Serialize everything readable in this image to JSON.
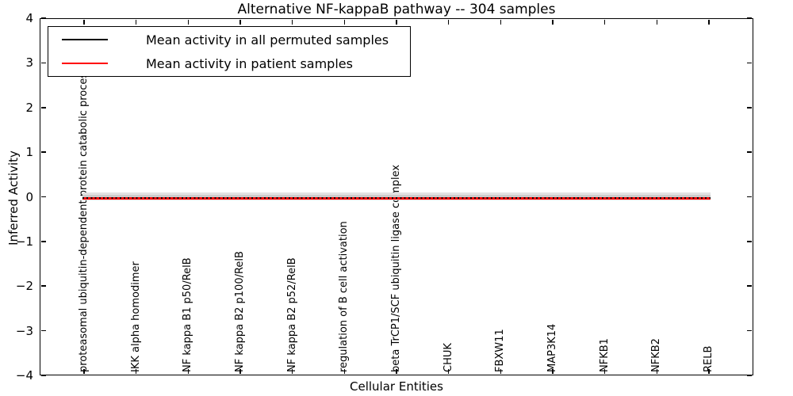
{
  "chart_data": {
    "type": "line",
    "title": "Alternative NF-kappaB pathway -- 304 samples",
    "xlabel": "Cellular Entities",
    "ylabel": "Inferred Activity",
    "ylim": [
      -4,
      4
    ],
    "yticks": [
      4,
      3,
      2,
      1,
      0,
      -1,
      -2,
      -3,
      -4
    ],
    "grid": false,
    "legend_position": "upper left",
    "categories": [
      "proteasomal ubiquitin-dependent protein catabolic process",
      "IKK alpha homodimer",
      "NF kappa B1 p50/RelB",
      "NF kappa B2 p100/RelB",
      "NF kappa B2 p52/RelB",
      "regulation of B cell activation",
      "beta TrCP1/SCF ubiquitin ligase complex",
      "CHUK",
      "FBXW11",
      "MAP3K14",
      "NFKB1",
      "NFKB2",
      "RELB"
    ],
    "series": [
      {
        "name": "Mean activity in all permuted samples",
        "color": "#000000",
        "style": "dotted",
        "values": [
          -0.02,
          -0.02,
          -0.02,
          -0.03,
          -0.02,
          -0.02,
          -0.02,
          -0.02,
          -0.02,
          -0.02,
          -0.02,
          -0.02,
          -0.02
        ]
      },
      {
        "name": "Mean activity in patient samples",
        "color": "#ff0000",
        "style": "solid",
        "values": [
          -0.04,
          -0.03,
          -0.03,
          -0.05,
          -0.03,
          -0.03,
          -0.03,
          -0.03,
          -0.03,
          -0.03,
          -0.03,
          -0.03,
          -0.04
        ]
      }
    ],
    "band": {
      "upper": 0.1,
      "lower": -0.08,
      "inner_upper": 0.045,
      "inner_lower": -0.06,
      "color": "#e2e2e2",
      "inner_color": "#cdcdcd"
    }
  }
}
